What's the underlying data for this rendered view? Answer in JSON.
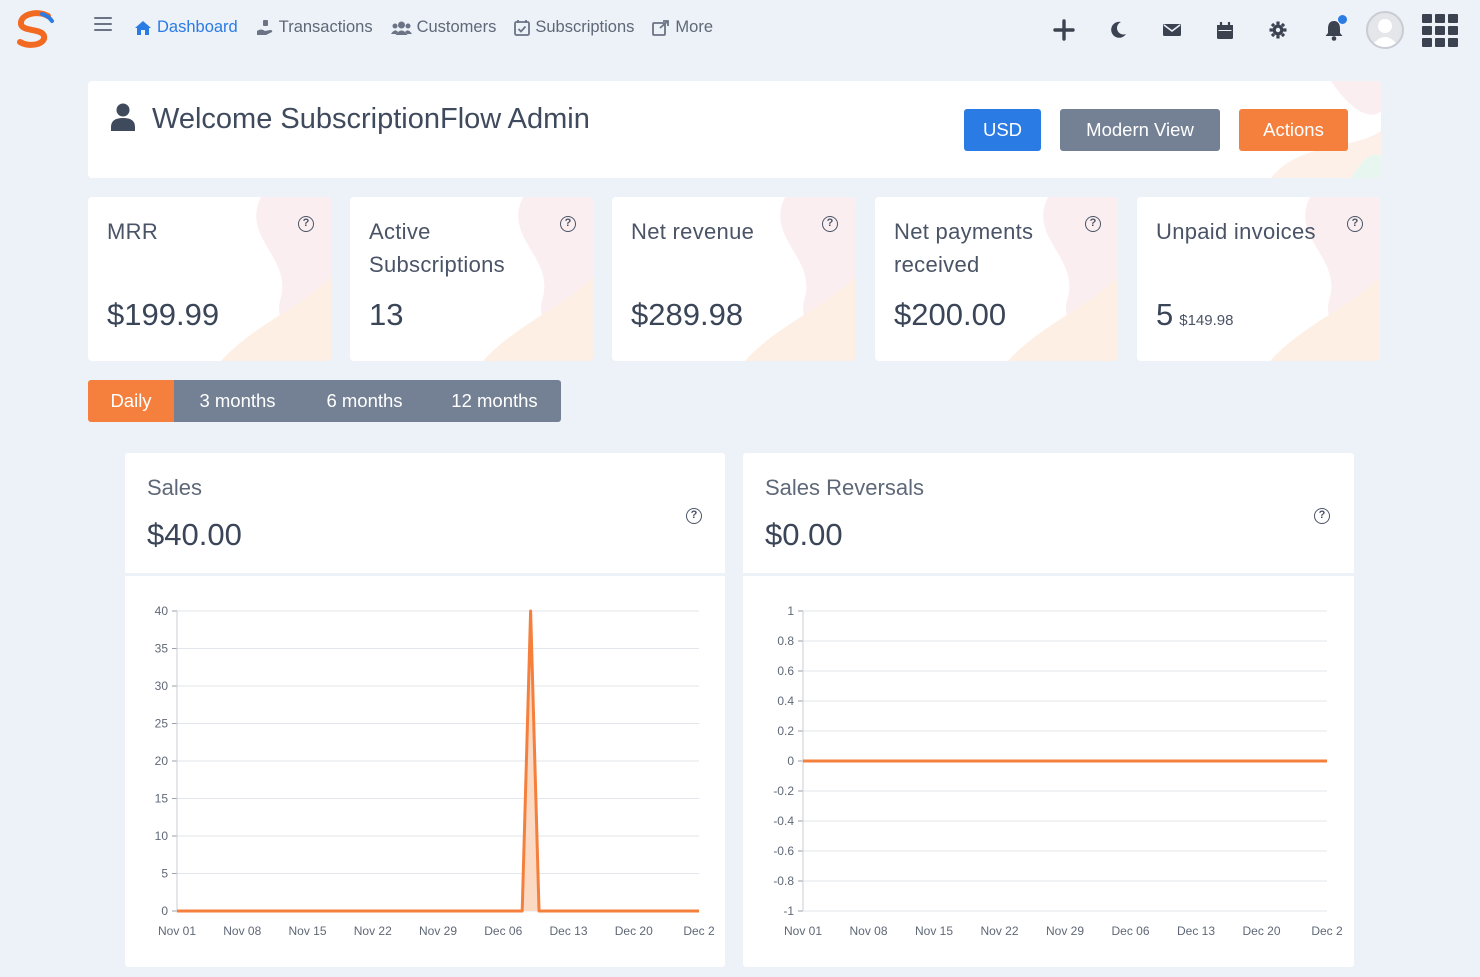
{
  "nav": {
    "items": [
      {
        "label": "Dashboard",
        "icon": "home-icon",
        "active": true
      },
      {
        "label": "Transactions",
        "icon": "hand-money-icon",
        "active": false
      },
      {
        "label": "Customers",
        "icon": "users-icon",
        "active": false
      },
      {
        "label": "Subscriptions",
        "icon": "calendar-check-icon",
        "active": false
      },
      {
        "label": "More",
        "icon": "external-link-icon",
        "active": false
      }
    ],
    "right_icons": [
      "plus-icon",
      "moon-icon",
      "envelope-icon",
      "calendar-icon",
      "gear-icon",
      "bell-icon"
    ]
  },
  "welcome": {
    "title": "Welcome SubscriptionFlow Admin",
    "buttons": {
      "currency": "USD",
      "view": "Modern View",
      "actions": "Actions"
    }
  },
  "stats": [
    {
      "label": "MRR",
      "value": "$199.99",
      "sub": ""
    },
    {
      "label": "Active Subscriptions",
      "value": "13",
      "sub": ""
    },
    {
      "label": "Net revenue",
      "value": "$289.98",
      "sub": ""
    },
    {
      "label": "Net payments received",
      "value": "$200.00",
      "sub": ""
    },
    {
      "label": "Unpaid invoices",
      "value": "5",
      "sub": "$149.98"
    }
  ],
  "period_tabs": [
    {
      "label": "Daily",
      "active": true
    },
    {
      "label": "3 months",
      "active": false
    },
    {
      "label": "6 months",
      "active": false
    },
    {
      "label": "12 months",
      "active": false
    }
  ],
  "colors": {
    "primary": "#2a7be4",
    "accent": "#f5803e",
    "secondary": "#748194",
    "background": "#edf1f8"
  },
  "chart_data": [
    {
      "type": "area",
      "title": "Sales",
      "amount": "$40.00",
      "x_tick_labels": [
        "Nov 01",
        "Nov 08",
        "Nov 15",
        "Nov 22",
        "Nov 29",
        "Dec 06",
        "Dec 13",
        "Dec 20",
        "Dec 2"
      ],
      "y_ticks": [
        0,
        5,
        10,
        15,
        20,
        25,
        30,
        35,
        40
      ],
      "ylim": [
        0,
        40
      ],
      "series": [
        {
          "values": [
            0,
            0,
            0,
            0,
            0,
            0,
            0,
            0,
            0,
            0,
            0,
            0,
            0,
            0,
            0,
            0,
            0,
            0,
            0,
            0,
            0,
            0,
            0,
            0,
            0,
            0,
            0,
            0,
            0,
            0,
            0,
            0,
            0,
            0,
            0,
            0,
            0,
            0,
            0,
            0,
            0,
            0,
            40,
            0,
            0,
            0,
            0,
            0,
            0,
            0,
            0,
            0,
            0,
            0,
            0,
            0,
            0,
            0,
            0,
            0,
            0,
            0,
            0
          ]
        }
      ],
      "grid": true
    },
    {
      "type": "line",
      "title": "Sales Reversals",
      "amount": "$0.00",
      "x_tick_labels": [
        "Nov 01",
        "Nov 08",
        "Nov 15",
        "Nov 22",
        "Nov 29",
        "Dec 06",
        "Dec 13",
        "Dec 20",
        "Dec 2"
      ],
      "y_ticks": [
        1,
        0.8,
        0.6,
        0.4,
        0.2,
        0,
        -0.2,
        -0.4,
        -0.6,
        -0.8,
        -1
      ],
      "ylim": [
        -1,
        1
      ],
      "series": [
        {
          "values": [
            0,
            0,
            0,
            0,
            0,
            0,
            0,
            0,
            0,
            0,
            0,
            0,
            0,
            0,
            0,
            0,
            0,
            0,
            0,
            0,
            0,
            0,
            0,
            0,
            0,
            0,
            0,
            0,
            0,
            0,
            0,
            0,
            0,
            0,
            0,
            0,
            0,
            0,
            0,
            0,
            0,
            0,
            0,
            0,
            0,
            0,
            0,
            0,
            0,
            0,
            0,
            0,
            0,
            0,
            0,
            0,
            0,
            0,
            0,
            0,
            0,
            0,
            0
          ]
        }
      ],
      "grid": true
    }
  ]
}
